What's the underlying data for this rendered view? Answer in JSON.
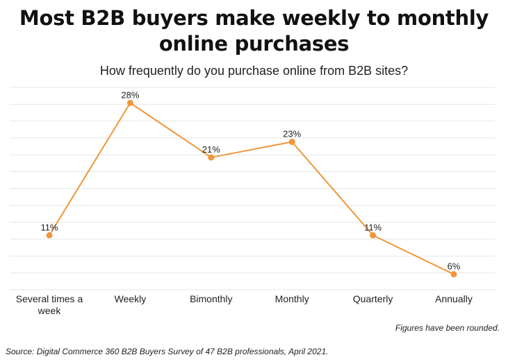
{
  "chart_data": {
    "type": "line",
    "title": "Most B2B buyers make weekly to monthly online purchases",
    "subtitle": "How frequently do you purchase online from B2B sites?",
    "categories": [
      "Several times a week",
      "Weekly",
      "Bimonthly",
      "Monthly",
      "Quarterly",
      "Annually"
    ],
    "category_lines": [
      [
        "Several times a",
        "week"
      ],
      [
        "Weekly"
      ],
      [
        "Bimonthly"
      ],
      [
        "Monthly"
      ],
      [
        "Quarterly"
      ],
      [
        "Annually"
      ]
    ],
    "values": [
      11,
      28,
      21,
      23,
      11,
      6
    ],
    "value_labels": [
      "11%",
      "28%",
      "21%",
      "23%",
      "11%",
      "6%"
    ],
    "ylim": [
      4,
      30
    ],
    "grid": true,
    "colors": {
      "line": "#f0963a",
      "grid": "#e6e6e6"
    },
    "note": "Figures have been rounded.",
    "source": "Source: Digital Commerce 360 B2B Buyers Survey of 47 B2B professionals, April 2021."
  }
}
